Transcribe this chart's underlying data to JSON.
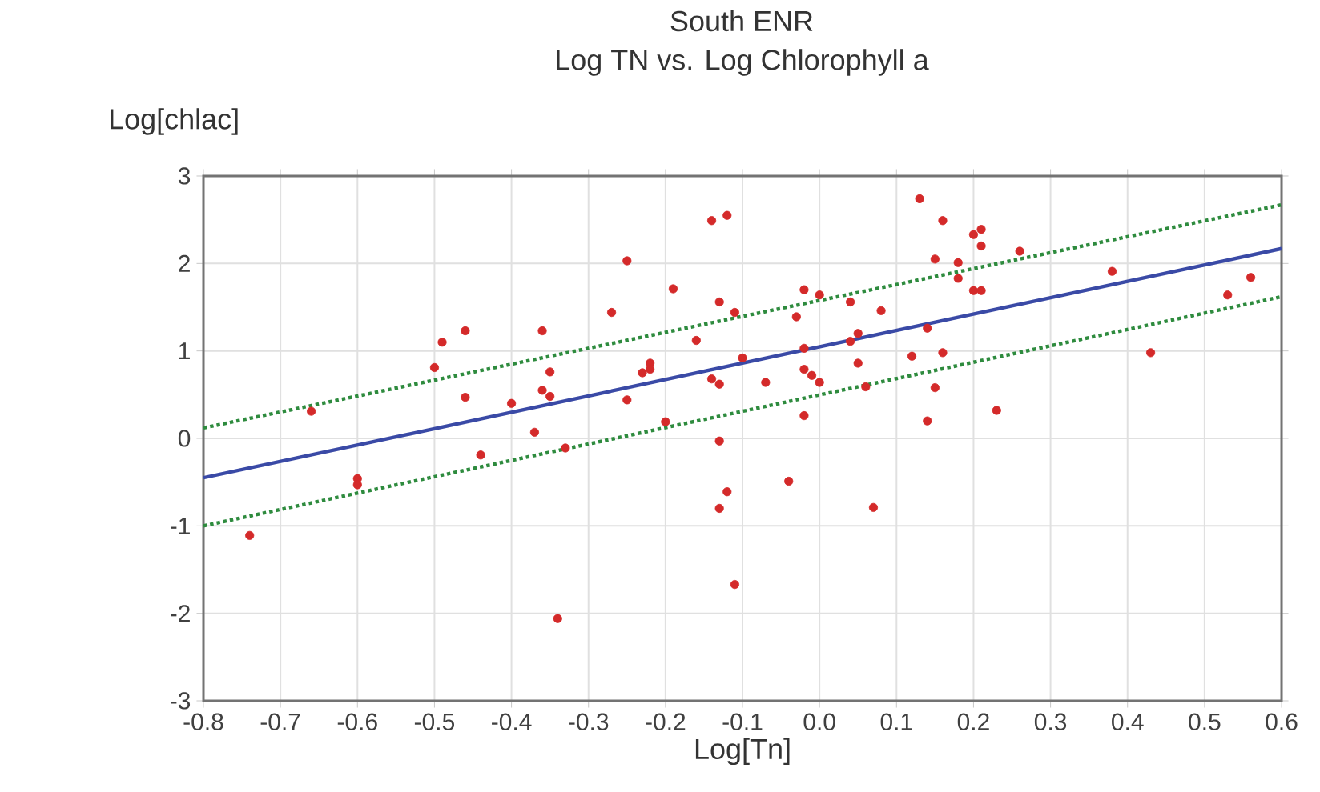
{
  "chart_data": {
    "type": "scatter",
    "title": "South ENR",
    "subtitle": "Log TN  vs. Log Chlorophyll a",
    "xlabel": "Log[Tn]",
    "ylabel": "Log[chlac]",
    "xlim": [
      -0.8,
      0.6
    ],
    "ylim": [
      -3,
      3
    ],
    "xticks": [
      -0.8,
      -0.7,
      -0.6,
      -0.5,
      -0.4,
      -0.3,
      -0.2,
      -0.1,
      {
        "value": 0,
        "label": "0.0"
      },
      0.1,
      0.2,
      0.3,
      0.4,
      0.5,
      0.6
    ],
    "yticks": [
      -3,
      -2,
      -1,
      0,
      1,
      2,
      3
    ],
    "grid": true,
    "marker": "circle",
    "series": [
      {
        "color": "#d42a2a",
        "x": [
          -0.74,
          -0.66,
          -0.6,
          -0.6,
          -0.5,
          -0.49,
          -0.46,
          -0.46,
          -0.44,
          -0.4,
          -0.36,
          -0.37,
          -0.35,
          -0.36,
          -0.35,
          -0.33,
          -0.34,
          -0.25,
          -0.27,
          -0.25,
          -0.22,
          -0.22,
          -0.23,
          -0.2,
          -0.19,
          -0.16,
          -0.14,
          -0.13,
          -0.14,
          -0.12,
          -0.13,
          -0.11,
          -0.13,
          -0.12,
          -0.13,
          -0.11,
          -0.1,
          -0.07,
          -0.03,
          -0.02,
          0.0,
          -0.02,
          -0.02,
          -0.01,
          0.0,
          -0.02,
          -0.04,
          0.04,
          0.04,
          0.05,
          0.05,
          0.06,
          0.08,
          0.07,
          0.13,
          0.12,
          0.14,
          0.16,
          0.15,
          0.14,
          0.16,
          0.15,
          0.18,
          0.18,
          0.2,
          0.21,
          0.21,
          0.2,
          0.21,
          0.23,
          0.26,
          0.38,
          0.43,
          0.53,
          0.56
        ],
        "values": [
          -1.11,
          0.31,
          -0.46,
          -0.53,
          0.81,
          1.1,
          1.23,
          0.47,
          -0.19,
          0.4,
          1.23,
          0.07,
          0.76,
          0.55,
          0.48,
          -0.11,
          -2.06,
          2.03,
          1.44,
          0.44,
          0.86,
          0.79,
          0.75,
          0.19,
          1.71,
          1.12,
          0.68,
          0.62,
          2.49,
          2.55,
          1.56,
          1.44,
          -0.03,
          -0.61,
          -0.8,
          -1.67,
          0.92,
          0.64,
          1.39,
          1.7,
          1.64,
          1.03,
          0.79,
          0.72,
          0.64,
          0.26,
          -0.49,
          1.56,
          1.11,
          1.2,
          0.86,
          0.59,
          1.46,
          -0.79,
          2.74,
          0.94,
          0.2,
          2.49,
          2.05,
          1.26,
          0.98,
          0.58,
          2.01,
          1.83,
          2.33,
          2.39,
          2.2,
          1.69,
          1.69,
          0.32,
          2.14,
          1.91,
          0.98,
          1.64,
          1.84
        ]
      },
      {
        "type": "line",
        "color": "#3a4aa6",
        "marker": "none",
        "line_style": "solid",
        "x": [
          -0.8,
          0.6
        ],
        "values": [
          -0.45,
          2.17
        ]
      },
      {
        "type": "line",
        "color": "#2e8b3e",
        "marker": "none",
        "line_style": "dotted",
        "x": [
          -0.8,
          0.6
        ],
        "values": [
          0.12,
          2.67
        ]
      },
      {
        "type": "line",
        "color": "#2e8b3e",
        "marker": "none",
        "line_style": "dotted",
        "x": [
          -0.8,
          0.6
        ],
        "values": [
          -1.0,
          1.62
        ]
      }
    ]
  }
}
